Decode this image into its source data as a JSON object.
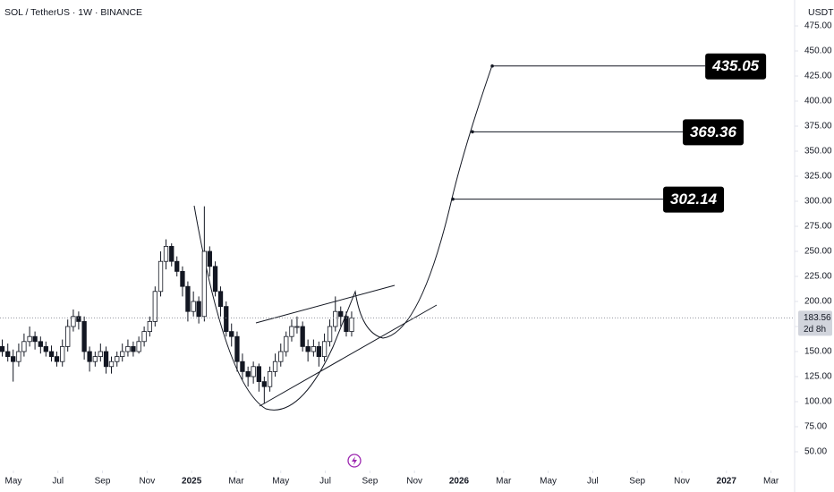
{
  "chart_data": {
    "type": "candlestick",
    "title": "SOL / TetherUS · 1W · BINANCE",
    "currency": "USDT",
    "x": [
      3.5,
      3.75,
      3.99,
      4.24,
      4.48,
      4.73,
      4.97,
      5.22,
      5.46,
      5.71,
      5.95,
      6.2,
      6.44,
      6.69,
      6.93,
      7.18,
      7.42,
      7.67,
      7.91,
      8.16,
      8.4,
      8.65,
      8.89,
      9.14,
      9.38,
      9.63,
      9.87,
      10.12,
      10.36,
      10.61,
      10.85,
      11.1,
      11.34,
      11.59,
      11.83,
      12.08,
      12.32,
      12.57,
      12.81,
      13.06,
      13.3,
      13.55,
      13.79,
      14.04,
      14.28,
      14.53,
      14.77,
      15.02,
      15.26,
      15.51,
      15.75,
      16.0,
      16.24,
      16.49,
      16.73,
      16.98,
      17.22,
      17.47,
      17.71,
      17.96,
      18.2,
      18.45,
      18.69,
      18.94,
      19.18
    ],
    "open": [
      155,
      150,
      145,
      140,
      150,
      160,
      165,
      160,
      155,
      150,
      145,
      140,
      155,
      175,
      185,
      180,
      150,
      140,
      145,
      150,
      135,
      140,
      145,
      150,
      155,
      150,
      160,
      170,
      180,
      210,
      240,
      255,
      240,
      230,
      215,
      190,
      200,
      185,
      250,
      235,
      210,
      195,
      170,
      165,
      140,
      130,
      125,
      135,
      120,
      115,
      130,
      140,
      150,
      165,
      175,
      175,
      155,
      150,
      155,
      145,
      160,
      175,
      190,
      185,
      170
    ],
    "high": [
      162,
      158,
      152,
      158,
      168,
      175,
      170,
      165,
      160,
      156,
      150,
      162,
      182,
      192,
      190,
      185,
      155,
      150,
      158,
      155,
      145,
      150,
      158,
      162,
      160,
      165,
      175,
      185,
      215,
      250,
      262,
      258,
      245,
      235,
      220,
      210,
      205,
      295,
      255,
      240,
      215,
      200,
      178,
      170,
      148,
      135,
      140,
      138,
      125,
      135,
      148,
      158,
      170,
      182,
      185,
      180,
      162,
      162,
      160,
      168,
      182,
      205,
      195,
      190,
      190
    ],
    "low": [
      145,
      140,
      120,
      135,
      145,
      155,
      152,
      148,
      145,
      140,
      135,
      135,
      150,
      170,
      172,
      142,
      130,
      135,
      140,
      128,
      128,
      135,
      140,
      145,
      145,
      148,
      155,
      165,
      175,
      205,
      232,
      235,
      225,
      205,
      180,
      185,
      178,
      180,
      225,
      205,
      185,
      165,
      155,
      130,
      122,
      115,
      118,
      110,
      98,
      110,
      125,
      135,
      145,
      160,
      168,
      150,
      140,
      145,
      135,
      140,
      155,
      170,
      175,
      165,
      165
    ],
    "close": [
      150,
      145,
      140,
      150,
      160,
      165,
      160,
      155,
      150,
      145,
      140,
      155,
      175,
      185,
      180,
      150,
      140,
      145,
      150,
      135,
      140,
      145,
      150,
      155,
      150,
      160,
      170,
      180,
      210,
      240,
      255,
      240,
      230,
      215,
      190,
      200,
      185,
      250,
      235,
      210,
      195,
      170,
      165,
      140,
      130,
      125,
      135,
      120,
      115,
      130,
      140,
      150,
      165,
      175,
      175,
      155,
      150,
      155,
      145,
      160,
      175,
      190,
      185,
      170,
      183.56
    ],
    "up_color": "#ffffff",
    "down_color": "#131722",
    "last_price": 183.56,
    "countdown": "2d 8h",
    "targets": [
      {
        "value": 435.05,
        "x": 25.49,
        "x2": 37.78
      },
      {
        "value": 369.36,
        "x": 24.6,
        "x2": 36.77
      },
      {
        "value": 302.14,
        "x": 23.72,
        "x2": 35.89
      }
    ],
    "xlim": [
      3.4,
      39.06
    ],
    "ylim": [
      36.6,
      500.9
    ],
    "yticks": [
      {
        "value": 50,
        "label": "50.00"
      },
      {
        "value": 75,
        "label": "75.00"
      },
      {
        "value": 100,
        "label": "100.00"
      },
      {
        "value": 125,
        "label": "125.00"
      },
      {
        "value": 150,
        "label": "150.00"
      },
      {
        "value": 175,
        "label": "175.00"
      },
      {
        "value": 200,
        "label": "200.00"
      },
      {
        "value": 225,
        "label": "225.00"
      },
      {
        "value": 250,
        "label": "250.00"
      },
      {
        "value": 275,
        "label": "275.00"
      },
      {
        "value": 300,
        "label": "300.00"
      },
      {
        "value": 325,
        "label": "325.00"
      },
      {
        "value": 350,
        "label": "350.00"
      },
      {
        "value": 375,
        "label": "375.00"
      },
      {
        "value": 400,
        "label": "400.00"
      },
      {
        "value": 425,
        "label": "425.00"
      },
      {
        "value": 450,
        "label": "450.00"
      },
      {
        "value": 475,
        "label": "475.00"
      }
    ],
    "xticks": [
      {
        "value": 4,
        "label": "May"
      },
      {
        "value": 6,
        "label": "Jul"
      },
      {
        "value": 8,
        "label": "Sep"
      },
      {
        "value": 10,
        "label": "Nov"
      },
      {
        "value": 12,
        "label": "2025"
      },
      {
        "value": 14,
        "label": "Mar"
      },
      {
        "value": 16,
        "label": "May"
      },
      {
        "value": 18,
        "label": "Jul"
      },
      {
        "value": 20,
        "label": "Sep"
      },
      {
        "value": 22,
        "label": "Nov"
      },
      {
        "value": 24,
        "label": "2026"
      },
      {
        "value": 26,
        "label": "Mar"
      },
      {
        "value": 28,
        "label": "May"
      },
      {
        "value": 30,
        "label": "Jul"
      },
      {
        "value": 32,
        "label": "Sep"
      },
      {
        "value": 34,
        "label": "Nov"
      },
      {
        "value": 36,
        "label": "2027"
      },
      {
        "value": 38,
        "label": "Mar"
      }
    ]
  }
}
